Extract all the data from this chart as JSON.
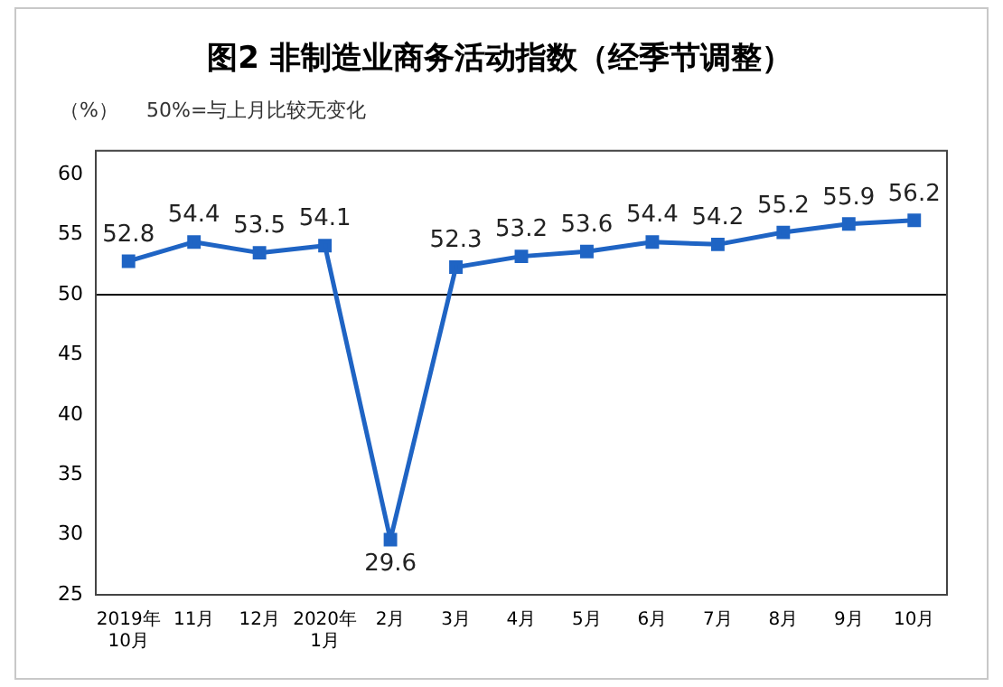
{
  "chart_data": {
    "type": "line",
    "title": "图2 非制造业商务活动指数（经季节调整）",
    "ylabel": "（%）",
    "annotations": [
      "50%=与上月比较无变化"
    ],
    "categories": [
      "2019年\n10月",
      "11月",
      "12月",
      "2020年\n1月",
      "2月",
      "3月",
      "4月",
      "5月",
      "6月",
      "7月",
      "8月",
      "9月",
      "10月"
    ],
    "series": [
      {
        "color": "#1f64c4",
        "values": [
          52.8,
          54.4,
          53.5,
          54.1,
          29.6,
          52.3,
          53.2,
          53.6,
          54.4,
          54.2,
          55.2,
          55.9,
          56.2
        ]
      }
    ],
    "ylim": [
      25,
      62
    ],
    "yticks": [
      25,
      30,
      35,
      40,
      45,
      50,
      55,
      60
    ],
    "ref_lines": [
      {
        "axis": "y",
        "value": 50,
        "color": "#000000"
      }
    ],
    "data_labels": true,
    "marker": "square",
    "grid": false,
    "legend": false
  }
}
